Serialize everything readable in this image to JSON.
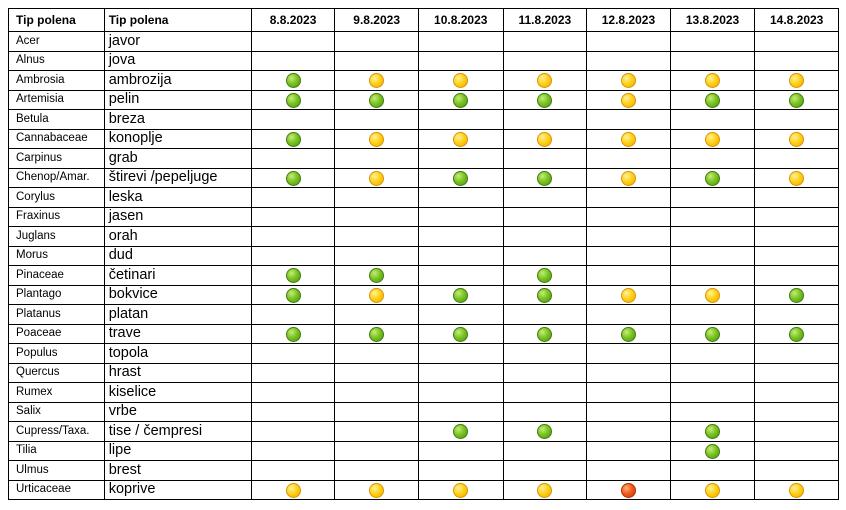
{
  "table": {
    "headers": {
      "latin": "Tip polena",
      "local": "Tip polena",
      "dates": [
        "8.8.2023",
        "9.8.2023",
        "10.8.2023",
        "11.8.2023",
        "12.8.2023",
        "13.8.2023",
        "14.8.2023"
      ]
    },
    "legend_colors": {
      "green": "#7cc424",
      "yellow": "#ffd21a",
      "red": "#f45a1a"
    },
    "rows": [
      {
        "latin": "Acer",
        "local": "javor",
        "levels": [
          "",
          "",
          "",
          "",
          "",
          "",
          ""
        ]
      },
      {
        "latin": "Alnus",
        "local": "jova",
        "levels": [
          "",
          "",
          "",
          "",
          "",
          "",
          ""
        ]
      },
      {
        "latin": "Ambrosia",
        "local": "ambrozija",
        "levels": [
          "green",
          "yellow",
          "yellow",
          "yellow",
          "yellow",
          "yellow",
          "yellow"
        ]
      },
      {
        "latin": "Artemisia",
        "local": "pelin",
        "levels": [
          "green",
          "green",
          "green",
          "green",
          "yellow",
          "green",
          "green"
        ]
      },
      {
        "latin": "Betula",
        "local": "breza",
        "levels": [
          "",
          "",
          "",
          "",
          "",
          "",
          ""
        ]
      },
      {
        "latin": "Cannabaceae",
        "local": "konoplje",
        "levels": [
          "green",
          "yellow",
          "yellow",
          "yellow",
          "yellow",
          "yellow",
          "yellow"
        ]
      },
      {
        "latin": "Carpinus",
        "local": "grab",
        "levels": [
          "",
          "",
          "",
          "",
          "",
          "",
          ""
        ]
      },
      {
        "latin": "Chenop/Amar.",
        "local": "štirevi /pepeljuge",
        "levels": [
          "green",
          "yellow",
          "green",
          "green",
          "yellow",
          "green",
          "yellow"
        ]
      },
      {
        "latin": "Corylus",
        "local": "leska",
        "levels": [
          "",
          "",
          "",
          "",
          "",
          "",
          ""
        ]
      },
      {
        "latin": "Fraxinus",
        "local": "jasen",
        "levels": [
          "",
          "",
          "",
          "",
          "",
          "",
          ""
        ]
      },
      {
        "latin": "Juglans",
        "local": "orah",
        "levels": [
          "",
          "",
          "",
          "",
          "",
          "",
          ""
        ]
      },
      {
        "latin": "Morus",
        "local": "dud",
        "levels": [
          "",
          "",
          "",
          "",
          "",
          "",
          ""
        ]
      },
      {
        "latin": "Pinaceae",
        "local": "četinari",
        "levels": [
          "green",
          "green",
          "",
          "green",
          "",
          "",
          ""
        ]
      },
      {
        "latin": "Plantago",
        "local": "bokvice",
        "levels": [
          "green",
          "yellow",
          "green",
          "green",
          "yellow",
          "yellow",
          "green"
        ]
      },
      {
        "latin": "Platanus",
        "local": "platan",
        "levels": [
          "",
          "",
          "",
          "",
          "",
          "",
          ""
        ]
      },
      {
        "latin": "Poaceae",
        "local": "trave",
        "levels": [
          "green",
          "green",
          "green",
          "green",
          "green",
          "green",
          "green"
        ]
      },
      {
        "latin": "Populus",
        "local": "topola",
        "levels": [
          "",
          "",
          "",
          "",
          "",
          "",
          ""
        ]
      },
      {
        "latin": "Quercus",
        "local": "hrast",
        "levels": [
          "",
          "",
          "",
          "",
          "",
          "",
          ""
        ]
      },
      {
        "latin": "Rumex",
        "local": "kiselice",
        "levels": [
          "",
          "",
          "",
          "",
          "",
          "",
          ""
        ]
      },
      {
        "latin": "Salix",
        "local": "vrbe",
        "levels": [
          "",
          "",
          "",
          "",
          "",
          "",
          ""
        ]
      },
      {
        "latin": "Cupress/Taxa.",
        "local": "tise / čempresi",
        "levels": [
          "",
          "",
          "green",
          "green",
          "",
          "green",
          ""
        ]
      },
      {
        "latin": "Tilia",
        "local": "lipe",
        "levels": [
          "",
          "",
          "",
          "",
          "",
          "green",
          ""
        ]
      },
      {
        "latin": "Ulmus",
        "local": "brest",
        "levels": [
          "",
          "",
          "",
          "",
          "",
          "",
          ""
        ]
      },
      {
        "latin": "Urticaceae",
        "local": "koprive",
        "levels": [
          "yellow",
          "yellow",
          "yellow",
          "yellow",
          "red",
          "yellow",
          "yellow"
        ]
      }
    ]
  }
}
